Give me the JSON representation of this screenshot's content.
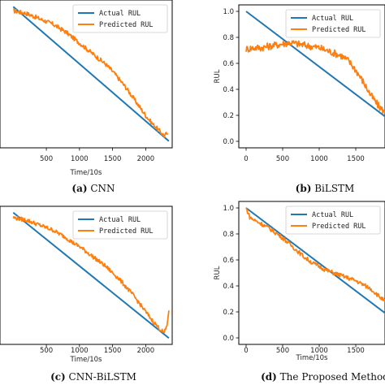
{
  "colors": {
    "actual": "#1f77b4",
    "predicted": "#ff7f0e",
    "axis": "#000000"
  },
  "chart_data": [
    {
      "type": "line",
      "caption_letter": "(a)",
      "caption_text": " CNN",
      "xlabel": "Time/10s",
      "ylabel": "",
      "xlim": [
        -200,
        2400
      ],
      "ylim": [
        -0.05,
        1.05
      ],
      "x_ticks": [
        {
          "v": 500,
          "t": "500"
        },
        {
          "v": 1000,
          "t": "1000"
        },
        {
          "v": 1500,
          "t": "1500"
        },
        {
          "v": 2000,
          "t": "2000"
        }
      ],
      "y_ticks": [],
      "legend": {
        "position": "top-right",
        "entries": [
          "Actual RUL",
          "Predicted RUL"
        ]
      },
      "series": [
        {
          "name": "Actual RUL",
          "x": [
            0,
            2350
          ],
          "y": [
            1.0,
            0.0
          ]
        },
        {
          "name": "Predicted RUL",
          "x": [
            0,
            100,
            200,
            300,
            400,
            500,
            600,
            700,
            800,
            900,
            1000,
            1100,
            1200,
            1300,
            1400,
            1500,
            1600,
            1700,
            1800,
            1900,
            2000,
            2100,
            2200,
            2280,
            2330
          ],
          "y": [
            0.97,
            0.96,
            0.95,
            0.93,
            0.91,
            0.89,
            0.87,
            0.84,
            0.81,
            0.77,
            0.73,
            0.69,
            0.65,
            0.61,
            0.57,
            0.52,
            0.46,
            0.4,
            0.33,
            0.26,
            0.19,
            0.13,
            0.08,
            0.04,
            0.06
          ]
        }
      ]
    },
    {
      "type": "line",
      "caption_letter": "(b)",
      "caption_text": " BiLSTM",
      "xlabel": "",
      "ylabel": "RUL",
      "xlim": [
        -100,
        1900
      ],
      "ylim": [
        -0.05,
        1.05
      ],
      "x_ticks": [
        {
          "v": 0,
          "t": "0"
        },
        {
          "v": 500,
          "t": "500"
        },
        {
          "v": 1000,
          "t": "1000"
        },
        {
          "v": 1500,
          "t": "1500"
        }
      ],
      "y_ticks": [
        {
          "v": 0.0,
          "t": "0.0"
        },
        {
          "v": 0.2,
          "t": "0.2"
        },
        {
          "v": 0.4,
          "t": "0.4"
        },
        {
          "v": 0.6,
          "t": "0.6"
        },
        {
          "v": 0.8,
          "t": "0.8"
        },
        {
          "v": 1.0,
          "t": "1.0"
        }
      ],
      "legend": {
        "position": "top-right",
        "entries": [
          "Actual RUL",
          "Predicted RUL"
        ]
      },
      "series": [
        {
          "name": "Actual RUL",
          "x": [
            0,
            2350
          ],
          "y": [
            1.0,
            0.0
          ]
        },
        {
          "name": "Predicted RUL",
          "x": [
            0,
            100,
            200,
            300,
            400,
            500,
            600,
            700,
            800,
            900,
            1000,
            1100,
            1200,
            1300,
            1400,
            1500,
            1600,
            1700,
            1800,
            1900
          ],
          "y": [
            0.71,
            0.72,
            0.72,
            0.73,
            0.74,
            0.75,
            0.76,
            0.75,
            0.74,
            0.73,
            0.72,
            0.7,
            0.68,
            0.66,
            0.62,
            0.55,
            0.46,
            0.36,
            0.28,
            0.22
          ]
        }
      ]
    },
    {
      "type": "line",
      "caption_letter": "(c)",
      "caption_text": " CNN-BiLSTM",
      "xlabel": "Time/10s",
      "ylabel": "",
      "xlim": [
        -200,
        2400
      ],
      "ylim": [
        -0.05,
        1.05
      ],
      "x_ticks": [
        {
          "v": 500,
          "t": "500"
        },
        {
          "v": 1000,
          "t": "1000"
        },
        {
          "v": 1500,
          "t": "1500"
        },
        {
          "v": 2000,
          "t": "2000"
        }
      ],
      "y_ticks": [],
      "legend": {
        "position": "top-right",
        "entries": [
          "Actual RUL",
          "Predicted RUL"
        ]
      },
      "series": [
        {
          "name": "Actual RUL",
          "x": [
            0,
            2350
          ],
          "y": [
            1.0,
            0.0
          ]
        },
        {
          "name": "Predicted RUL",
          "x": [
            0,
            100,
            200,
            300,
            400,
            500,
            600,
            700,
            800,
            900,
            1000,
            1100,
            1200,
            1300,
            1400,
            1500,
            1600,
            1700,
            1800,
            1900,
            2000,
            2100,
            2200,
            2280,
            2320,
            2350
          ],
          "y": [
            0.96,
            0.95,
            0.94,
            0.92,
            0.9,
            0.88,
            0.86,
            0.83,
            0.8,
            0.76,
            0.73,
            0.69,
            0.65,
            0.61,
            0.57,
            0.52,
            0.47,
            0.41,
            0.35,
            0.28,
            0.21,
            0.14,
            0.08,
            0.04,
            0.1,
            0.22
          ]
        }
      ]
    },
    {
      "type": "line",
      "caption_letter": "(d)",
      "caption_text": " The Proposed Method",
      "xlabel": "Time/10s",
      "ylabel": "RUL",
      "xlim": [
        -100,
        1900
      ],
      "ylim": [
        -0.05,
        1.05
      ],
      "x_ticks": [
        {
          "v": 0,
          "t": "0"
        },
        {
          "v": 500,
          "t": "500"
        },
        {
          "v": 1000,
          "t": "1000"
        },
        {
          "v": 1500,
          "t": "1500"
        }
      ],
      "y_ticks": [
        {
          "v": 0.0,
          "t": "0.0"
        },
        {
          "v": 0.2,
          "t": "0.2"
        },
        {
          "v": 0.4,
          "t": "0.4"
        },
        {
          "v": 0.6,
          "t": "0.6"
        },
        {
          "v": 0.8,
          "t": "0.8"
        },
        {
          "v": 1.0,
          "t": "1.0"
        }
      ],
      "legend": {
        "position": "top-right",
        "entries": [
          "Actual RUL",
          "Predicted RUL"
        ]
      },
      "series": [
        {
          "name": "Actual RUL",
          "x": [
            0,
            2350
          ],
          "y": [
            1.0,
            0.0
          ]
        },
        {
          "name": "Predicted RUL",
          "x": [
            0,
            50,
            100,
            200,
            300,
            400,
            500,
            600,
            700,
            800,
            900,
            1000,
            1100,
            1200,
            1300,
            1400,
            1500,
            1600,
            1700,
            1800,
            1900
          ],
          "y": [
            1.0,
            0.93,
            0.91,
            0.88,
            0.85,
            0.81,
            0.77,
            0.72,
            0.67,
            0.62,
            0.58,
            0.55,
            0.52,
            0.5,
            0.48,
            0.46,
            0.44,
            0.41,
            0.38,
            0.33,
            0.28
          ]
        }
      ]
    }
  ]
}
